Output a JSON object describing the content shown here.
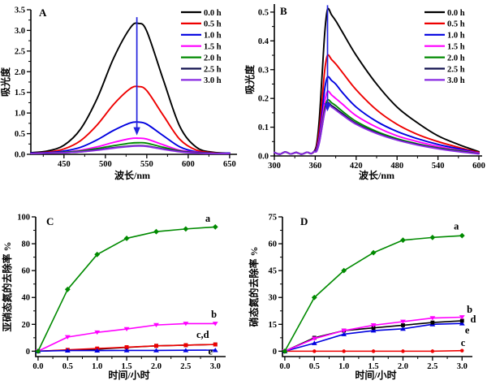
{
  "figure_title": "",
  "chart_data": [
    {
      "type": "line",
      "panel_letter": "A",
      "xlabel": "波长/nm",
      "ylabel": "吸光度",
      "x_range": [
        410,
        655
      ],
      "y_range": [
        0,
        3.5
      ],
      "x_ticks": [
        450,
        500,
        550,
        600,
        650
      ],
      "y_ticks": [
        0.0,
        0.5,
        1.0,
        1.5,
        2.0,
        2.5,
        3.0,
        3.5
      ],
      "x_dec": 0,
      "y_dec": 1,
      "grid": false,
      "legend_position": "top-right",
      "legend": [
        {
          "label": "0.0 h",
          "color": "#000000"
        },
        {
          "label": "0.5 h",
          "color": "#ee0000"
        },
        {
          "label": "1.0 h",
          "color": "#0000e0"
        },
        {
          "label": "1.5 h",
          "color": "#ff00ff"
        },
        {
          "label": "2.0 h",
          "color": "#008a00"
        },
        {
          "label": "2.5 h",
          "color": "#12124f"
        },
        {
          "label": "3.0 h",
          "color": "#8a2be2"
        }
      ],
      "arrow": {
        "x": 538,
        "y_from": 3.32,
        "y_to": 0.46,
        "color": "#2222dd"
      },
      "x": [
        410,
        430,
        450,
        470,
        490,
        510,
        530,
        540,
        550,
        570,
        590,
        610,
        630,
        650
      ],
      "series": [
        {
          "name": "0.0 h",
          "color": "#000000",
          "smooth": true,
          "y": [
            0.04,
            0.08,
            0.22,
            0.61,
            1.35,
            2.33,
            3.06,
            3.17,
            2.98,
            1.8,
            0.67,
            0.17,
            0.05,
            0.03
          ]
        },
        {
          "name": "0.5 h",
          "color": "#ee0000",
          "smooth": true,
          "y": [
            0.03,
            0.05,
            0.13,
            0.33,
            0.71,
            1.21,
            1.59,
            1.64,
            1.54,
            0.94,
            0.36,
            0.1,
            0.04,
            0.03
          ]
        },
        {
          "name": "1.0 h",
          "color": "#0000e0",
          "smooth": true,
          "y": [
            0.03,
            0.04,
            0.08,
            0.17,
            0.35,
            0.58,
            0.76,
            0.78,
            0.73,
            0.45,
            0.18,
            0.06,
            0.03,
            0.03
          ]
        },
        {
          "name": "1.5 h",
          "color": "#ff00ff",
          "smooth": true,
          "y": [
            0.02,
            0.03,
            0.05,
            0.1,
            0.18,
            0.29,
            0.38,
            0.39,
            0.37,
            0.23,
            0.1,
            0.05,
            0.03,
            0.02
          ]
        },
        {
          "name": "2.0 h",
          "color": "#008a00",
          "smooth": true,
          "y": [
            0.02,
            0.03,
            0.05,
            0.08,
            0.14,
            0.21,
            0.27,
            0.28,
            0.27,
            0.17,
            0.08,
            0.04,
            0.03,
            0.02
          ]
        },
        {
          "name": "2.5 h",
          "color": "#12124f",
          "smooth": true,
          "y": [
            0.02,
            0.03,
            0.04,
            0.06,
            0.11,
            0.16,
            0.2,
            0.21,
            0.2,
            0.13,
            0.07,
            0.04,
            0.03,
            0.02
          ]
        },
        {
          "name": "3.0 h",
          "color": "#8a2be2",
          "smooth": true,
          "y": [
            0.02,
            0.03,
            0.04,
            0.06,
            0.1,
            0.15,
            0.19,
            0.2,
            0.19,
            0.12,
            0.06,
            0.03,
            0.02,
            0.02
          ]
        }
      ],
      "annotations": []
    },
    {
      "type": "line",
      "panel_letter": "B",
      "xlabel": "波长/nm",
      "ylabel": "吸光度",
      "x_range": [
        300,
        600
      ],
      "y_range": [
        0,
        0.528
      ],
      "x_ticks": [
        300,
        360,
        420,
        480,
        540,
        600
      ],
      "y_ticks": [
        0.0,
        0.1,
        0.2,
        0.3,
        0.4,
        0.5
      ],
      "x_dec": 0,
      "y_dec": 1,
      "grid": false,
      "legend_position": "top-right",
      "legend": [
        {
          "label": "0.0 h",
          "color": "#000000"
        },
        {
          "label": "0.5 h",
          "color": "#ee0000"
        },
        {
          "label": "1.0 h",
          "color": "#0000e0"
        },
        {
          "label": "1.5 h",
          "color": "#ff00ff"
        },
        {
          "label": "2.0 h",
          "color": "#008a00"
        },
        {
          "label": "2.5 h",
          "color": "#12124f"
        },
        {
          "label": "3.0 h",
          "color": "#8a2be2"
        }
      ],
      "arrow": {
        "x": 378,
        "y_from": 0.524,
        "y_to": 0.155,
        "color": "#2222dd"
      },
      "x": [
        300,
        308,
        316,
        324,
        332,
        340,
        348,
        354,
        358,
        362,
        366,
        370,
        374,
        378,
        384,
        390,
        400,
        420,
        450,
        480,
        510,
        540,
        570,
        600
      ],
      "series": [
        {
          "name": "0.0 h",
          "color": "#000000",
          "smooth": true,
          "y": [
            0.012,
            0.006,
            0.014,
            0.007,
            0.012,
            0.006,
            0.013,
            0.008,
            0.015,
            0.04,
            0.13,
            0.28,
            0.43,
            0.51,
            0.49,
            0.47,
            0.43,
            0.35,
            0.25,
            0.17,
            0.115,
            0.07,
            0.04,
            0.015
          ]
        },
        {
          "name": "0.5 h",
          "color": "#ee0000",
          "smooth": true,
          "y": [
            0.012,
            0.006,
            0.014,
            0.007,
            0.012,
            0.006,
            0.013,
            0.008,
            0.015,
            0.03,
            0.09,
            0.19,
            0.3,
            0.35,
            0.335,
            0.32,
            0.29,
            0.23,
            0.16,
            0.11,
            0.075,
            0.05,
            0.03,
            0.012
          ]
        },
        {
          "name": "1.0 h",
          "color": "#0000e0",
          "smooth": true,
          "y": [
            0.012,
            0.006,
            0.014,
            0.007,
            0.012,
            0.006,
            0.013,
            0.008,
            0.015,
            0.025,
            0.07,
            0.15,
            0.235,
            0.275,
            0.262,
            0.25,
            0.22,
            0.17,
            0.12,
            0.085,
            0.06,
            0.04,
            0.025,
            0.01
          ]
        },
        {
          "name": "1.5 h",
          "color": "#ff00ff",
          "smooth": true,
          "y": [
            0.012,
            0.006,
            0.014,
            0.007,
            0.012,
            0.006,
            0.013,
            0.008,
            0.015,
            0.02,
            0.06,
            0.125,
            0.19,
            0.225,
            0.212,
            0.2,
            0.18,
            0.14,
            0.1,
            0.07,
            0.05,
            0.033,
            0.02,
            0.01
          ]
        },
        {
          "name": "2.0 h",
          "color": "#008a00",
          "smooth": true,
          "y": [
            0.012,
            0.006,
            0.014,
            0.007,
            0.012,
            0.006,
            0.013,
            0.008,
            0.015,
            0.018,
            0.05,
            0.108,
            0.165,
            0.195,
            0.185,
            0.175,
            0.155,
            0.12,
            0.085,
            0.06,
            0.042,
            0.028,
            0.018,
            0.008
          ]
        },
        {
          "name": "2.5 h",
          "color": "#12124f",
          "smooth": true,
          "y": [
            0.012,
            0.006,
            0.014,
            0.007,
            0.012,
            0.006,
            0.013,
            0.008,
            0.015,
            0.017,
            0.048,
            0.102,
            0.157,
            0.185,
            0.175,
            0.165,
            0.147,
            0.113,
            0.08,
            0.056,
            0.04,
            0.026,
            0.016,
            0.008
          ]
        },
        {
          "name": "3.0 h",
          "color": "#8a2be2",
          "smooth": true,
          "y": [
            0.012,
            0.006,
            0.014,
            0.007,
            0.012,
            0.006,
            0.013,
            0.008,
            0.015,
            0.016,
            0.046,
            0.1,
            0.153,
            0.18,
            0.17,
            0.16,
            0.142,
            0.11,
            0.078,
            0.055,
            0.038,
            0.025,
            0.015,
            0.007
          ]
        }
      ],
      "annotations": []
    },
    {
      "type": "line",
      "panel_letter": "C",
      "xlabel": "时间/小时",
      "ylabel": "亚硝态氮的去除率 %",
      "x_range": [
        -0.04,
        3.12
      ],
      "y_range": [
        -4,
        100
      ],
      "x_ticks": [
        0.0,
        0.5,
        1.0,
        1.5,
        2.0,
        2.5,
        3.0
      ],
      "y_ticks": [
        0,
        20,
        40,
        60,
        80,
        100
      ],
      "x_dec": 1,
      "y_dec": 0,
      "grid": false,
      "legend": [],
      "x": [
        0,
        0.5,
        1.0,
        1.5,
        2.0,
        2.5,
        3.0
      ],
      "series": [
        {
          "name": "d",
          "color": "#000000",
          "marker": "square",
          "smooth": false,
          "y": [
            0,
            0.8,
            1.5,
            2.8,
            4,
            4.5,
            5
          ]
        },
        {
          "name": "c",
          "color": "#ee0000",
          "marker": "square",
          "smooth": false,
          "y": [
            0,
            1,
            2,
            3,
            4,
            4.5,
            5
          ]
        },
        {
          "name": "e",
          "color": "#0000e0",
          "marker": "tri-up",
          "smooth": false,
          "y": [
            0,
            0.5,
            0.5,
            0.6,
            0.6,
            0.7,
            0.8
          ]
        },
        {
          "name": "b",
          "color": "#ff00ff",
          "marker": "tri-down",
          "smooth": false,
          "y": [
            0,
            10.5,
            14,
            16.5,
            19.5,
            20.5,
            20.5
          ]
        },
        {
          "name": "a",
          "color": "#008a00",
          "marker": "diamond",
          "smooth": false,
          "y": [
            0,
            46,
            72,
            84,
            89,
            91,
            92.5
          ]
        }
      ],
      "annotations": [
        {
          "text": "a",
          "x": 2.83,
          "y": 96.5
        },
        {
          "text": "b",
          "x": 2.93,
          "y": 25
        },
        {
          "text": "c,d",
          "x": 2.68,
          "y": 10
        },
        {
          "text": "e",
          "x": 2.88,
          "y": -2.5
        }
      ]
    },
    {
      "type": "line",
      "panel_letter": "D",
      "xlabel": "时间/小时",
      "ylabel": "硝态氮的去除率 %",
      "x_range": [
        -0.04,
        3.12
      ],
      "y_range": [
        -3,
        75
      ],
      "x_ticks": [
        0.0,
        0.5,
        1.0,
        1.5,
        2.0,
        2.5,
        3.0
      ],
      "y_ticks": [
        0,
        15,
        30,
        45,
        60,
        75
      ],
      "x_dec": 1,
      "y_dec": 0,
      "grid": false,
      "legend": [],
      "x": [
        0,
        0.5,
        1.0,
        1.5,
        2.0,
        2.5,
        3.0
      ],
      "series": [
        {
          "name": "c",
          "color": "#ee0000",
          "marker": "circle",
          "smooth": false,
          "y": [
            0,
            0,
            0,
            0,
            0,
            0,
            0.3
          ]
        },
        {
          "name": "e",
          "color": "#0000e0",
          "marker": "tri-up",
          "smooth": false,
          "y": [
            0,
            4.5,
            9.5,
            11.5,
            12.5,
            15,
            15.5
          ]
        },
        {
          "name": "d",
          "color": "#000000",
          "marker": "square",
          "smooth": false,
          "y": [
            0,
            7.5,
            11.5,
            13,
            14.5,
            16,
            17
          ]
        },
        {
          "name": "b",
          "color": "#ff00ff",
          "marker": "tri-down",
          "smooth": false,
          "y": [
            0,
            7,
            11.5,
            14.5,
            16.5,
            18.5,
            19
          ]
        },
        {
          "name": "a",
          "color": "#008a00",
          "marker": "diamond",
          "smooth": false,
          "y": [
            0,
            30,
            45,
            55,
            62,
            63.5,
            64.5
          ]
        }
      ],
      "annotations": [
        {
          "text": "a",
          "x": 2.86,
          "y": 68
        },
        {
          "text": "b",
          "x": 3.08,
          "y": 21.5
        },
        {
          "text": "d",
          "x": 3.14,
          "y": 16
        },
        {
          "text": "e",
          "x": 3.05,
          "y": 10
        },
        {
          "text": "c",
          "x": 2.98,
          "y": 2.8
        }
      ]
    }
  ]
}
